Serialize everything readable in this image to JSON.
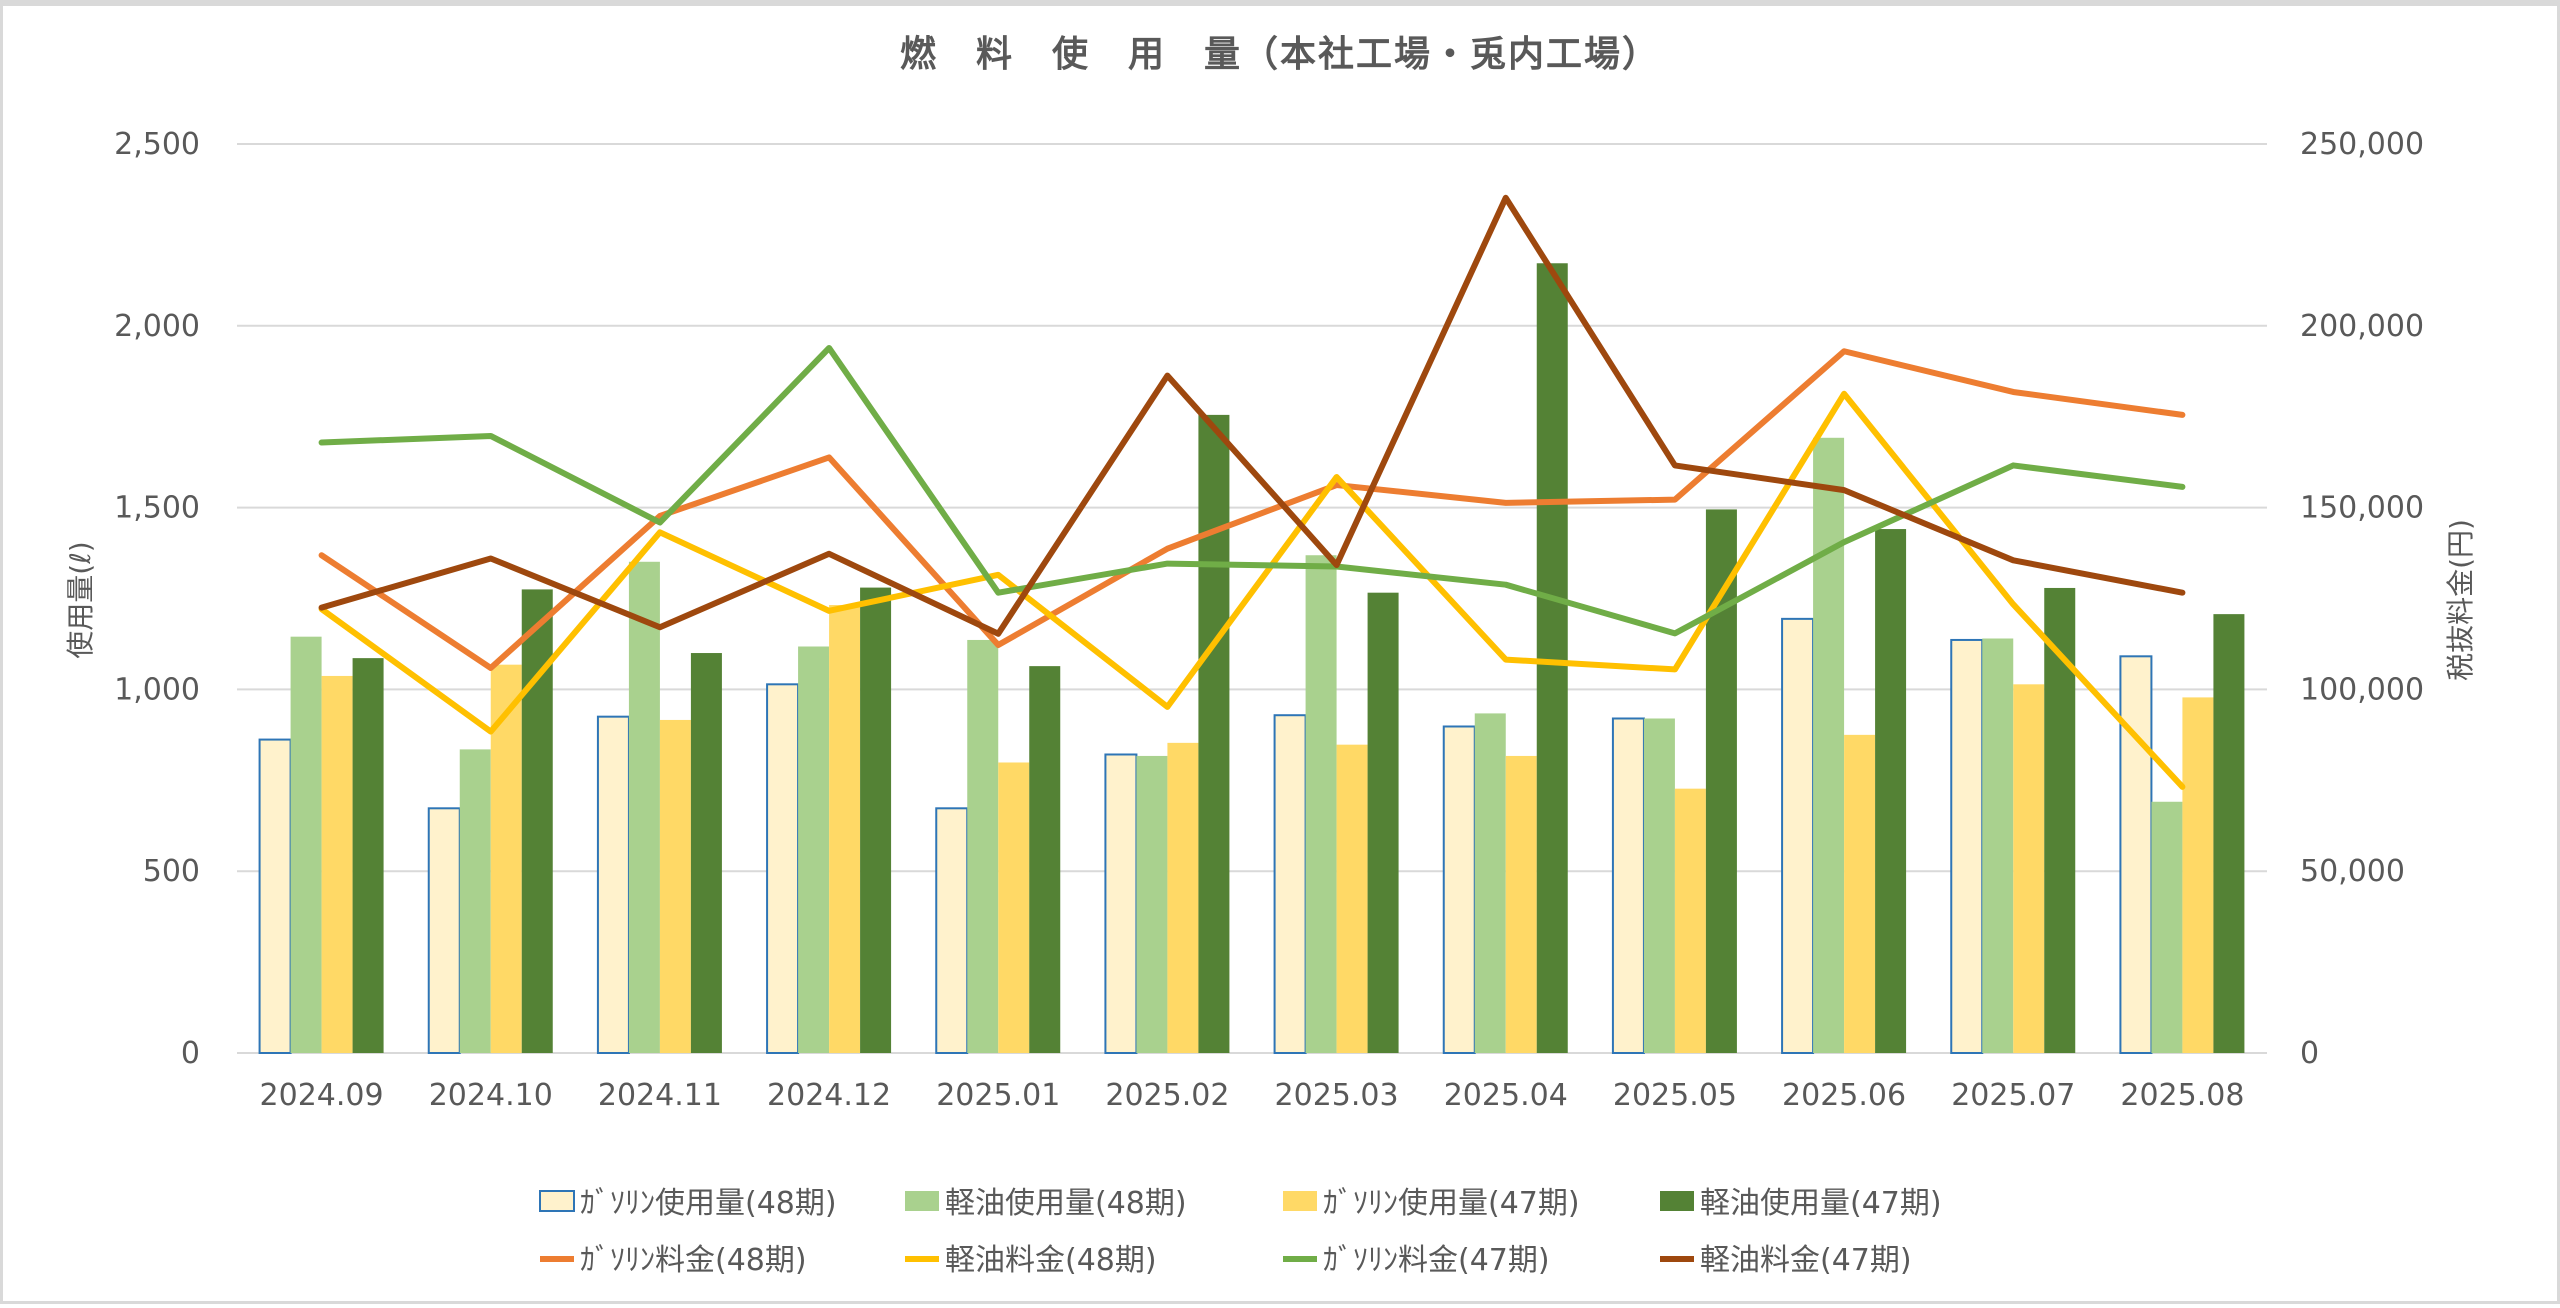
{
  "chart_data": {
    "type": "bar+line",
    "title": "燃　料　使　用　量（本社工場・兎内工場）",
    "ylabel": "使用量(ℓ)",
    "y2label": "税抜料金(円)",
    "ylim": [
      0,
      2500
    ],
    "y2lim": [
      0,
      250000
    ],
    "yticks": [
      "0",
      "500",
      "1,000",
      "1,500",
      "2,000",
      "2,500"
    ],
    "y2ticks": [
      "0",
      "50,000",
      "100,000",
      "150,000",
      "200,000",
      "250,000"
    ],
    "grid": true,
    "legend_position": "bottom",
    "categories": [
      "2024.09",
      "2024.10",
      "2024.11",
      "2024.12",
      "2025.01",
      "2025.02",
      "2025.03",
      "2025.04",
      "2025.05",
      "2025.06",
      "2025.07",
      "2025.08"
    ],
    "bar_series": [
      {
        "name": "ｶﾞｿﾘﾝ使用量(48期)",
        "color": "#fff2cc",
        "border": "#2e75b6",
        "values": [
          862,
          673,
          925,
          1014,
          673,
          821,
          929,
          898,
          920,
          1194,
          1136,
          1091
        ]
      },
      {
        "name": "軽油使用量(48期)",
        "color": "#a9d18e",
        "values": [
          1145,
          835,
          1351,
          1118,
          1136,
          817,
          1369,
          934,
          920,
          1692,
          1140,
          691
        ]
      },
      {
        "name": "ｶﾞｿﾘﾝ使用量(47期)",
        "color": "#ffd966",
        "values": [
          1037,
          1068,
          916,
          1232,
          799,
          853,
          848,
          817,
          727,
          875,
          1014,
          978
        ]
      },
      {
        "name": "軽油使用量(47期)",
        "color": "#548235",
        "values": [
          1086,
          1275,
          1100,
          1280,
          1064,
          1755,
          1266,
          2172,
          1495,
          1441,
          1279,
          1207
        ]
      }
    ],
    "line_series": [
      {
        "name": "ｶﾞｿﾘﾝ料金(48期)",
        "color": "#ed7d31",
        "values": [
          136900,
          105900,
          147700,
          163800,
          112200,
          138700,
          156200,
          151300,
          152200,
          193000,
          181800,
          175500
        ]
      },
      {
        "name": "軽油料金(48期)",
        "color": "#ffc000",
        "values": [
          122100,
          88400,
          143200,
          121600,
          131500,
          95200,
          158400,
          108200,
          105500,
          181300,
          123400,
          73200
        ]
      },
      {
        "name": "ｶﾞｿﾘﾝ料金(47期)",
        "color": "#70ad47",
        "values": [
          167900,
          169700,
          145900,
          193900,
          126600,
          134600,
          133800,
          128800,
          115400,
          140500,
          161600,
          155700
        ]
      },
      {
        "name": "軽油料金(47期)",
        "color": "#9e480e",
        "values": [
          122500,
          136000,
          117100,
          137300,
          115300,
          186300,
          134200,
          235200,
          161600,
          154800,
          135500,
          126600
        ]
      }
    ]
  }
}
